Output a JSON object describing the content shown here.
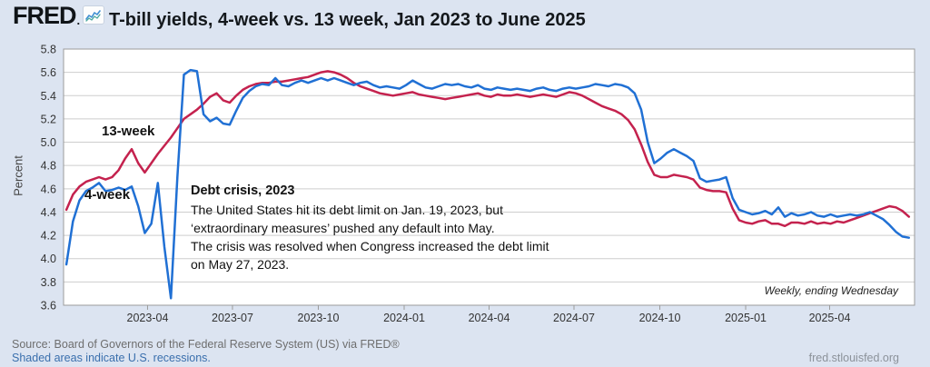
{
  "header": {
    "logo": "FRED",
    "logo_dot": ".",
    "title": "T-bill yields, 4-week vs. 13 week, Jan 2023 to June 2025"
  },
  "annotations": {
    "series_label_13": "13-week",
    "series_label_4": "4-week",
    "note_title": "Debt crisis, 2023",
    "note_lines": [
      "The United States hit its debt limit on Jan. 19, 2023, but",
      "‘extraordinary measures’ pushed any default into May.",
      "The crisis was resolved when Congress increased the debt limit",
      "on May 27, 2023."
    ]
  },
  "footer": {
    "source": "Source: Board of Governors of the Federal Reserve System (US) via FRED®",
    "recession_note": "Shaded areas indicate U.S. recessions.",
    "site": "fred.stlouisfed.org"
  },
  "colors": {
    "background": "#dce4f1",
    "plot_background": "#ffffff",
    "grid": "#cdcdcd",
    "plot_border": "#9b9b9b",
    "tick_text": "#333333",
    "series_4_week": "#2070d4",
    "series_13_week": "#c4224e"
  },
  "chart_data": {
    "type": "line",
    "title": "T-bill yields, 4-week vs. 13 week, Jan 2023 to June 2025",
    "xlabel": "",
    "ylabel": "Percent",
    "ylim": [
      3.6,
      5.8
    ],
    "yticks": [
      3.6,
      3.8,
      4.0,
      4.2,
      4.4,
      4.6,
      4.8,
      5.0,
      5.2,
      5.4,
      5.6,
      5.8
    ],
    "xticks": [
      "2023-04",
      "2023-07",
      "2023-10",
      "2024-01",
      "2024-04",
      "2024-07",
      "2024-10",
      "2025-01",
      "2025-04"
    ],
    "x_range": [
      "2023-01-01",
      "2025-07-01"
    ],
    "grid": true,
    "legend_position": "inline-labels",
    "frequency_note": "Weekly, ending Wednesday",
    "x": [
      "2023-01-04",
      "2023-01-11",
      "2023-01-18",
      "2023-01-25",
      "2023-02-01",
      "2023-02-08",
      "2023-02-15",
      "2023-02-22",
      "2023-03-01",
      "2023-03-08",
      "2023-03-15",
      "2023-03-22",
      "2023-03-29",
      "2023-04-05",
      "2023-04-12",
      "2023-04-19",
      "2023-04-26",
      "2023-05-03",
      "2023-05-10",
      "2023-05-17",
      "2023-05-24",
      "2023-05-31",
      "2023-06-07",
      "2023-06-14",
      "2023-06-21",
      "2023-06-28",
      "2023-07-05",
      "2023-07-12",
      "2023-07-19",
      "2023-07-26",
      "2023-08-02",
      "2023-08-09",
      "2023-08-16",
      "2023-08-23",
      "2023-08-30",
      "2023-09-06",
      "2023-09-13",
      "2023-09-20",
      "2023-09-27",
      "2023-10-04",
      "2023-10-11",
      "2023-10-18",
      "2023-10-25",
      "2023-11-01",
      "2023-11-08",
      "2023-11-15",
      "2023-11-22",
      "2023-11-29",
      "2023-12-06",
      "2023-12-13",
      "2023-12-20",
      "2023-12-27",
      "2024-01-03",
      "2024-01-10",
      "2024-01-17",
      "2024-01-24",
      "2024-01-31",
      "2024-02-07",
      "2024-02-14",
      "2024-02-21",
      "2024-02-28",
      "2024-03-06",
      "2024-03-13",
      "2024-03-20",
      "2024-03-27",
      "2024-04-03",
      "2024-04-10",
      "2024-04-17",
      "2024-04-24",
      "2024-05-01",
      "2024-05-08",
      "2024-05-15",
      "2024-05-22",
      "2024-05-29",
      "2024-06-05",
      "2024-06-12",
      "2024-06-19",
      "2024-06-26",
      "2024-07-03",
      "2024-07-10",
      "2024-07-17",
      "2024-07-24",
      "2024-07-31",
      "2024-08-07",
      "2024-08-14",
      "2024-08-21",
      "2024-08-28",
      "2024-09-04",
      "2024-09-11",
      "2024-09-18",
      "2024-09-25",
      "2024-10-02",
      "2024-10-09",
      "2024-10-16",
      "2024-10-23",
      "2024-10-30",
      "2024-11-06",
      "2024-11-13",
      "2024-11-20",
      "2024-11-27",
      "2024-12-04",
      "2024-12-11",
      "2024-12-18",
      "2024-12-25",
      "2025-01-01",
      "2025-01-08",
      "2025-01-15",
      "2025-01-22",
      "2025-01-29",
      "2025-02-05",
      "2025-02-12",
      "2025-02-19",
      "2025-02-26",
      "2025-03-05",
      "2025-03-12",
      "2025-03-19",
      "2025-03-26",
      "2025-04-02",
      "2025-04-09",
      "2025-04-16",
      "2025-04-23",
      "2025-04-30",
      "2025-05-07",
      "2025-05-14",
      "2025-05-21",
      "2025-05-28",
      "2025-06-04",
      "2025-06-11",
      "2025-06-18",
      "2025-06-25"
    ],
    "series": [
      {
        "name": "13-week",
        "color": "#c4224e",
        "values": [
          4.42,
          4.55,
          4.62,
          4.66,
          4.68,
          4.7,
          4.68,
          4.7,
          4.76,
          4.86,
          4.94,
          4.82,
          4.74,
          4.82,
          4.9,
          4.97,
          5.04,
          5.12,
          5.2,
          5.24,
          5.28,
          5.33,
          5.39,
          5.42,
          5.36,
          5.34,
          5.4,
          5.45,
          5.48,
          5.5,
          5.51,
          5.51,
          5.52,
          5.52,
          5.53,
          5.54,
          5.55,
          5.56,
          5.58,
          5.6,
          5.61,
          5.6,
          5.58,
          5.55,
          5.51,
          5.48,
          5.46,
          5.44,
          5.42,
          5.41,
          5.4,
          5.41,
          5.42,
          5.43,
          5.41,
          5.4,
          5.39,
          5.38,
          5.37,
          5.38,
          5.39,
          5.4,
          5.41,
          5.42,
          5.4,
          5.39,
          5.41,
          5.4,
          5.4,
          5.41,
          5.4,
          5.39,
          5.4,
          5.41,
          5.4,
          5.39,
          5.41,
          5.43,
          5.42,
          5.4,
          5.37,
          5.34,
          5.31,
          5.29,
          5.27,
          5.24,
          5.19,
          5.11,
          4.98,
          4.83,
          4.72,
          4.7,
          4.7,
          4.72,
          4.71,
          4.7,
          4.68,
          4.61,
          4.59,
          4.58,
          4.58,
          4.57,
          4.43,
          4.33,
          4.31,
          4.3,
          4.32,
          4.33,
          4.3,
          4.3,
          4.28,
          4.31,
          4.31,
          4.3,
          4.32,
          4.3,
          4.31,
          4.3,
          4.32,
          4.31,
          4.33,
          4.35,
          4.37,
          4.39,
          4.41,
          4.43,
          4.45,
          4.44,
          4.41,
          4.36
        ]
      },
      {
        "name": "4-week",
        "color": "#2070d4",
        "values": [
          3.95,
          4.32,
          4.5,
          4.58,
          4.61,
          4.65,
          4.58,
          4.59,
          4.61,
          4.59,
          4.62,
          4.45,
          4.22,
          4.3,
          4.65,
          4.1,
          3.66,
          4.7,
          5.58,
          5.62,
          5.61,
          5.24,
          5.18,
          5.21,
          5.16,
          5.15,
          5.27,
          5.38,
          5.44,
          5.48,
          5.5,
          5.49,
          5.55,
          5.49,
          5.48,
          5.51,
          5.53,
          5.51,
          5.53,
          5.55,
          5.53,
          5.55,
          5.53,
          5.51,
          5.49,
          5.51,
          5.52,
          5.49,
          5.47,
          5.48,
          5.47,
          5.46,
          5.49,
          5.53,
          5.5,
          5.47,
          5.46,
          5.48,
          5.5,
          5.49,
          5.5,
          5.48,
          5.47,
          5.49,
          5.46,
          5.45,
          5.47,
          5.46,
          5.45,
          5.46,
          5.45,
          5.44,
          5.46,
          5.47,
          5.45,
          5.44,
          5.46,
          5.47,
          5.46,
          5.47,
          5.48,
          5.5,
          5.49,
          5.48,
          5.5,
          5.49,
          5.47,
          5.42,
          5.28,
          5.0,
          4.82,
          4.86,
          4.91,
          4.94,
          4.91,
          4.88,
          4.84,
          4.69,
          4.66,
          4.67,
          4.68,
          4.7,
          4.52,
          4.42,
          4.4,
          4.38,
          4.39,
          4.41,
          4.38,
          4.44,
          4.36,
          4.39,
          4.37,
          4.38,
          4.4,
          4.37,
          4.36,
          4.38,
          4.36,
          4.37,
          4.38,
          4.37,
          4.38,
          4.4,
          4.37,
          4.34,
          4.29,
          4.23,
          4.19,
          4.18
        ]
      }
    ]
  }
}
